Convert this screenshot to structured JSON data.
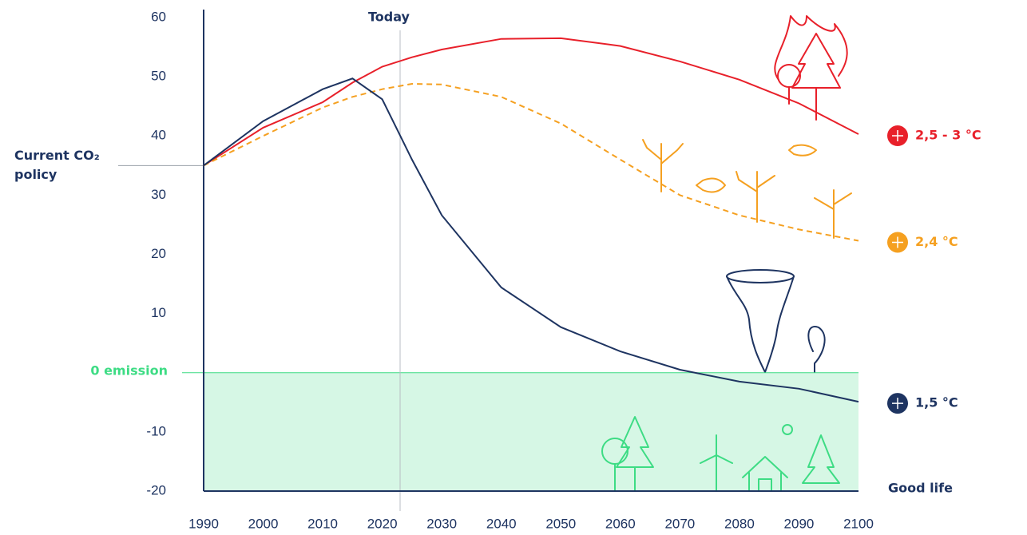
{
  "chart_data": {
    "type": "line",
    "xlim": [
      1990,
      2100
    ],
    "xticks": [
      1990,
      2000,
      2010,
      2020,
      2030,
      2040,
      2050,
      2060,
      2070,
      2080,
      2090,
      2100
    ],
    "ylim": [
      -20,
      60
    ],
    "yticks": [
      60,
      50,
      40,
      30,
      20,
      10,
      -10,
      -20
    ],
    "x": [
      1990,
      2000,
      2010,
      2015,
      2020,
      2025,
      2030,
      2040,
      2050,
      2060,
      2070,
      2080,
      2090,
      2100
    ],
    "series": [
      {
        "name": "2,5 - 3 °C",
        "color": "#e8202a",
        "dashed": false,
        "values": [
          35,
          41.4,
          45.7,
          49,
          51.7,
          53.3,
          54.6,
          56.4,
          56.5,
          55.2,
          52.6,
          49.5,
          45.5,
          40.3
        ]
      },
      {
        "name": "2,4 °C",
        "color": "#f5a020",
        "dashed": true,
        "values": [
          35,
          40,
          44.8,
          46.6,
          47.9,
          48.8,
          48.7,
          46.6,
          42.1,
          36,
          30,
          26.6,
          24.2,
          22.3
        ]
      },
      {
        "name": "1,5 °C",
        "color": "#1e3461",
        "dashed": false,
        "values": [
          35,
          42.5,
          47.9,
          49.7,
          46.2,
          36,
          26.6,
          14.4,
          7.7,
          3.6,
          0.5,
          -1.5,
          -2.7,
          -4.9
        ]
      }
    ],
    "today": {
      "label": "Today",
      "x": 2023
    },
    "policy": {
      "lines": [
        "Current CO₂",
        "policy"
      ],
      "value": 35
    },
    "zero": {
      "label": "0 emission",
      "value": 0
    },
    "bottom_label": "Good life"
  }
}
